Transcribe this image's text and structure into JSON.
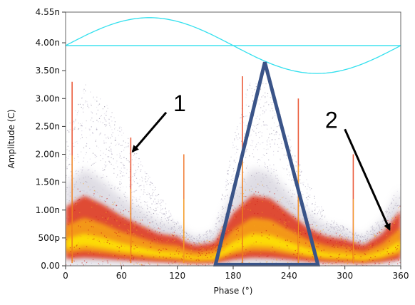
{
  "chart_data": {
    "type": "scatter",
    "subtype": "phase-resolved partial discharge density plot",
    "xlabel": "Phase (°)",
    "ylabel": "Amplitude (C)",
    "xlim": [
      0,
      360
    ],
    "ylim": [
      0,
      4.55
    ],
    "x_ticks": [
      0,
      60,
      120,
      180,
      240,
      300,
      360
    ],
    "x_tick_labels": [
      "0",
      "60",
      "120",
      "180",
      "240",
      "300",
      "360"
    ],
    "y_ticks": [
      0,
      0.5,
      1.0,
      1.5,
      2.0,
      2.5,
      3.0,
      3.5,
      4.0,
      4.55
    ],
    "y_tick_labels": [
      "0.00",
      "500p",
      "1.00n",
      "1.50n",
      "2.00n",
      "2.50n",
      "3.00n",
      "3.50n",
      "4.00n",
      "4.55n"
    ],
    "grid": false,
    "reference_sine": {
      "color": "#33e0ee",
      "baseline": 3.95,
      "amplitude": 0.5,
      "period_deg": 360
    },
    "density_envelope": {
      "x": [
        0,
        20,
        40,
        60,
        80,
        100,
        120,
        130,
        140,
        160,
        180,
        200,
        220,
        240,
        260,
        280,
        300,
        310,
        320,
        340,
        360
      ],
      "core_top": [
        1.0,
        1.2,
        1.05,
        0.85,
        0.7,
        0.55,
        0.5,
        0.4,
        0.35,
        0.4,
        0.9,
        1.2,
        1.15,
        0.9,
        0.65,
        0.5,
        0.45,
        0.4,
        0.35,
        0.55,
        0.95
      ],
      "cloud_top": [
        2.4,
        3.3,
        3.0,
        2.5,
        1.9,
        1.3,
        0.8,
        0.6,
        0.55,
        0.7,
        2.3,
        3.5,
        3.2,
        2.3,
        1.5,
        0.9,
        0.7,
        0.6,
        0.6,
        0.9,
        1.5
      ]
    },
    "vertical_streaks": [
      {
        "x": 7,
        "top": 3.3,
        "color": "#e8401a"
      },
      {
        "x": 70,
        "top": 2.3,
        "color": "#e8401a"
      },
      {
        "x": 127,
        "top": 2.0,
        "color": "#f07020"
      },
      {
        "x": 190,
        "top": 3.4,
        "color": "#e8401a"
      },
      {
        "x": 250,
        "top": 3.0,
        "color": "#e8401a"
      },
      {
        "x": 309,
        "top": 2.0,
        "color": "#e8401a"
      }
    ],
    "annotations": [
      {
        "label": "1",
        "arrow_from": [
          108,
          2.75
        ],
        "arrow_to": [
          72,
          2.05
        ]
      },
      {
        "label": "2",
        "arrow_from": [
          300,
          2.45
        ],
        "arrow_to": [
          348,
          0.65
        ]
      }
    ],
    "triangle_overlay": {
      "color": "#3a5488",
      "points": [
        [
          161,
          0.02
        ],
        [
          214,
          3.65
        ],
        [
          271,
          0.02
        ]
      ]
    },
    "colors": {
      "cloud": "#b8b3c4",
      "core_outer": "#e03018",
      "core_inner": "#f6a012",
      "core_peak": "#fff200",
      "streak": "#e8401a"
    }
  }
}
